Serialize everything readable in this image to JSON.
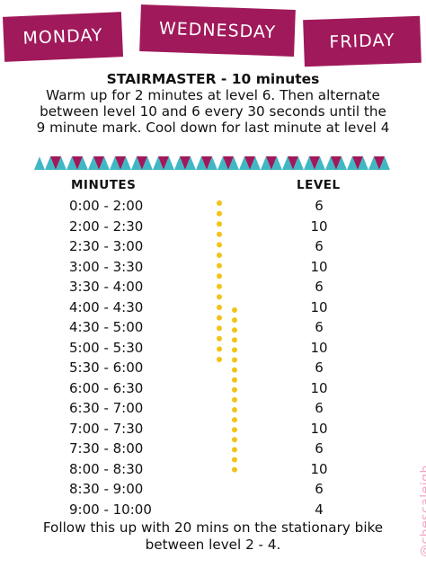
{
  "days": [
    "MONDAY",
    "WEDNESDAY",
    "FRIDAY"
  ],
  "intro": {
    "title": "STAIRMASTER - 10 minutes",
    "body": "Warm up for 2 minutes at level 6.  Then alternate between level 10 and 6 every 30 seconds until the 9 minute mark. Cool down for last minute at level 4"
  },
  "table": {
    "headers": {
      "minutes": "MINUTES",
      "level": "LEVEL"
    },
    "rows": [
      {
        "time": "0:00 - 2:00",
        "level": "6"
      },
      {
        "time": "2:00 - 2:30",
        "level": "10"
      },
      {
        "time": "2:30 - 3:00",
        "level": "6"
      },
      {
        "time": "3:00 - 3:30",
        "level": "10"
      },
      {
        "time": "3:30 - 4:00",
        "level": "6"
      },
      {
        "time": "4:00 - 4:30",
        "level": "10"
      },
      {
        "time": "4:30 - 5:00",
        "level": "6"
      },
      {
        "time": "5:00 - 5:30",
        "level": "10"
      },
      {
        "time": "5:30 - 6:00",
        "level": "6"
      },
      {
        "time": "6:00 - 6:30",
        "level": "10"
      },
      {
        "time": "6:30 - 7:00",
        "level": "6"
      },
      {
        "time": "7:00 - 7:30",
        "level": "10"
      },
      {
        "time": "7:30 - 8:00",
        "level": "6"
      },
      {
        "time": "8:00 - 8:30",
        "level": "10"
      },
      {
        "time": "8:30 - 9:00",
        "level": "6"
      },
      {
        "time": "9:00 - 10:00",
        "level": "4"
      }
    ]
  },
  "footer": "Follow this up with 20 mins on the stationary bike between level 2 - 4.",
  "handle": "@chescaleigh",
  "colors": {
    "tab": "#a0195a",
    "triangles": [
      "#3fb8c4",
      "#a0195a"
    ],
    "dots": "#f2c318",
    "handle": "#f2a6c6"
  }
}
